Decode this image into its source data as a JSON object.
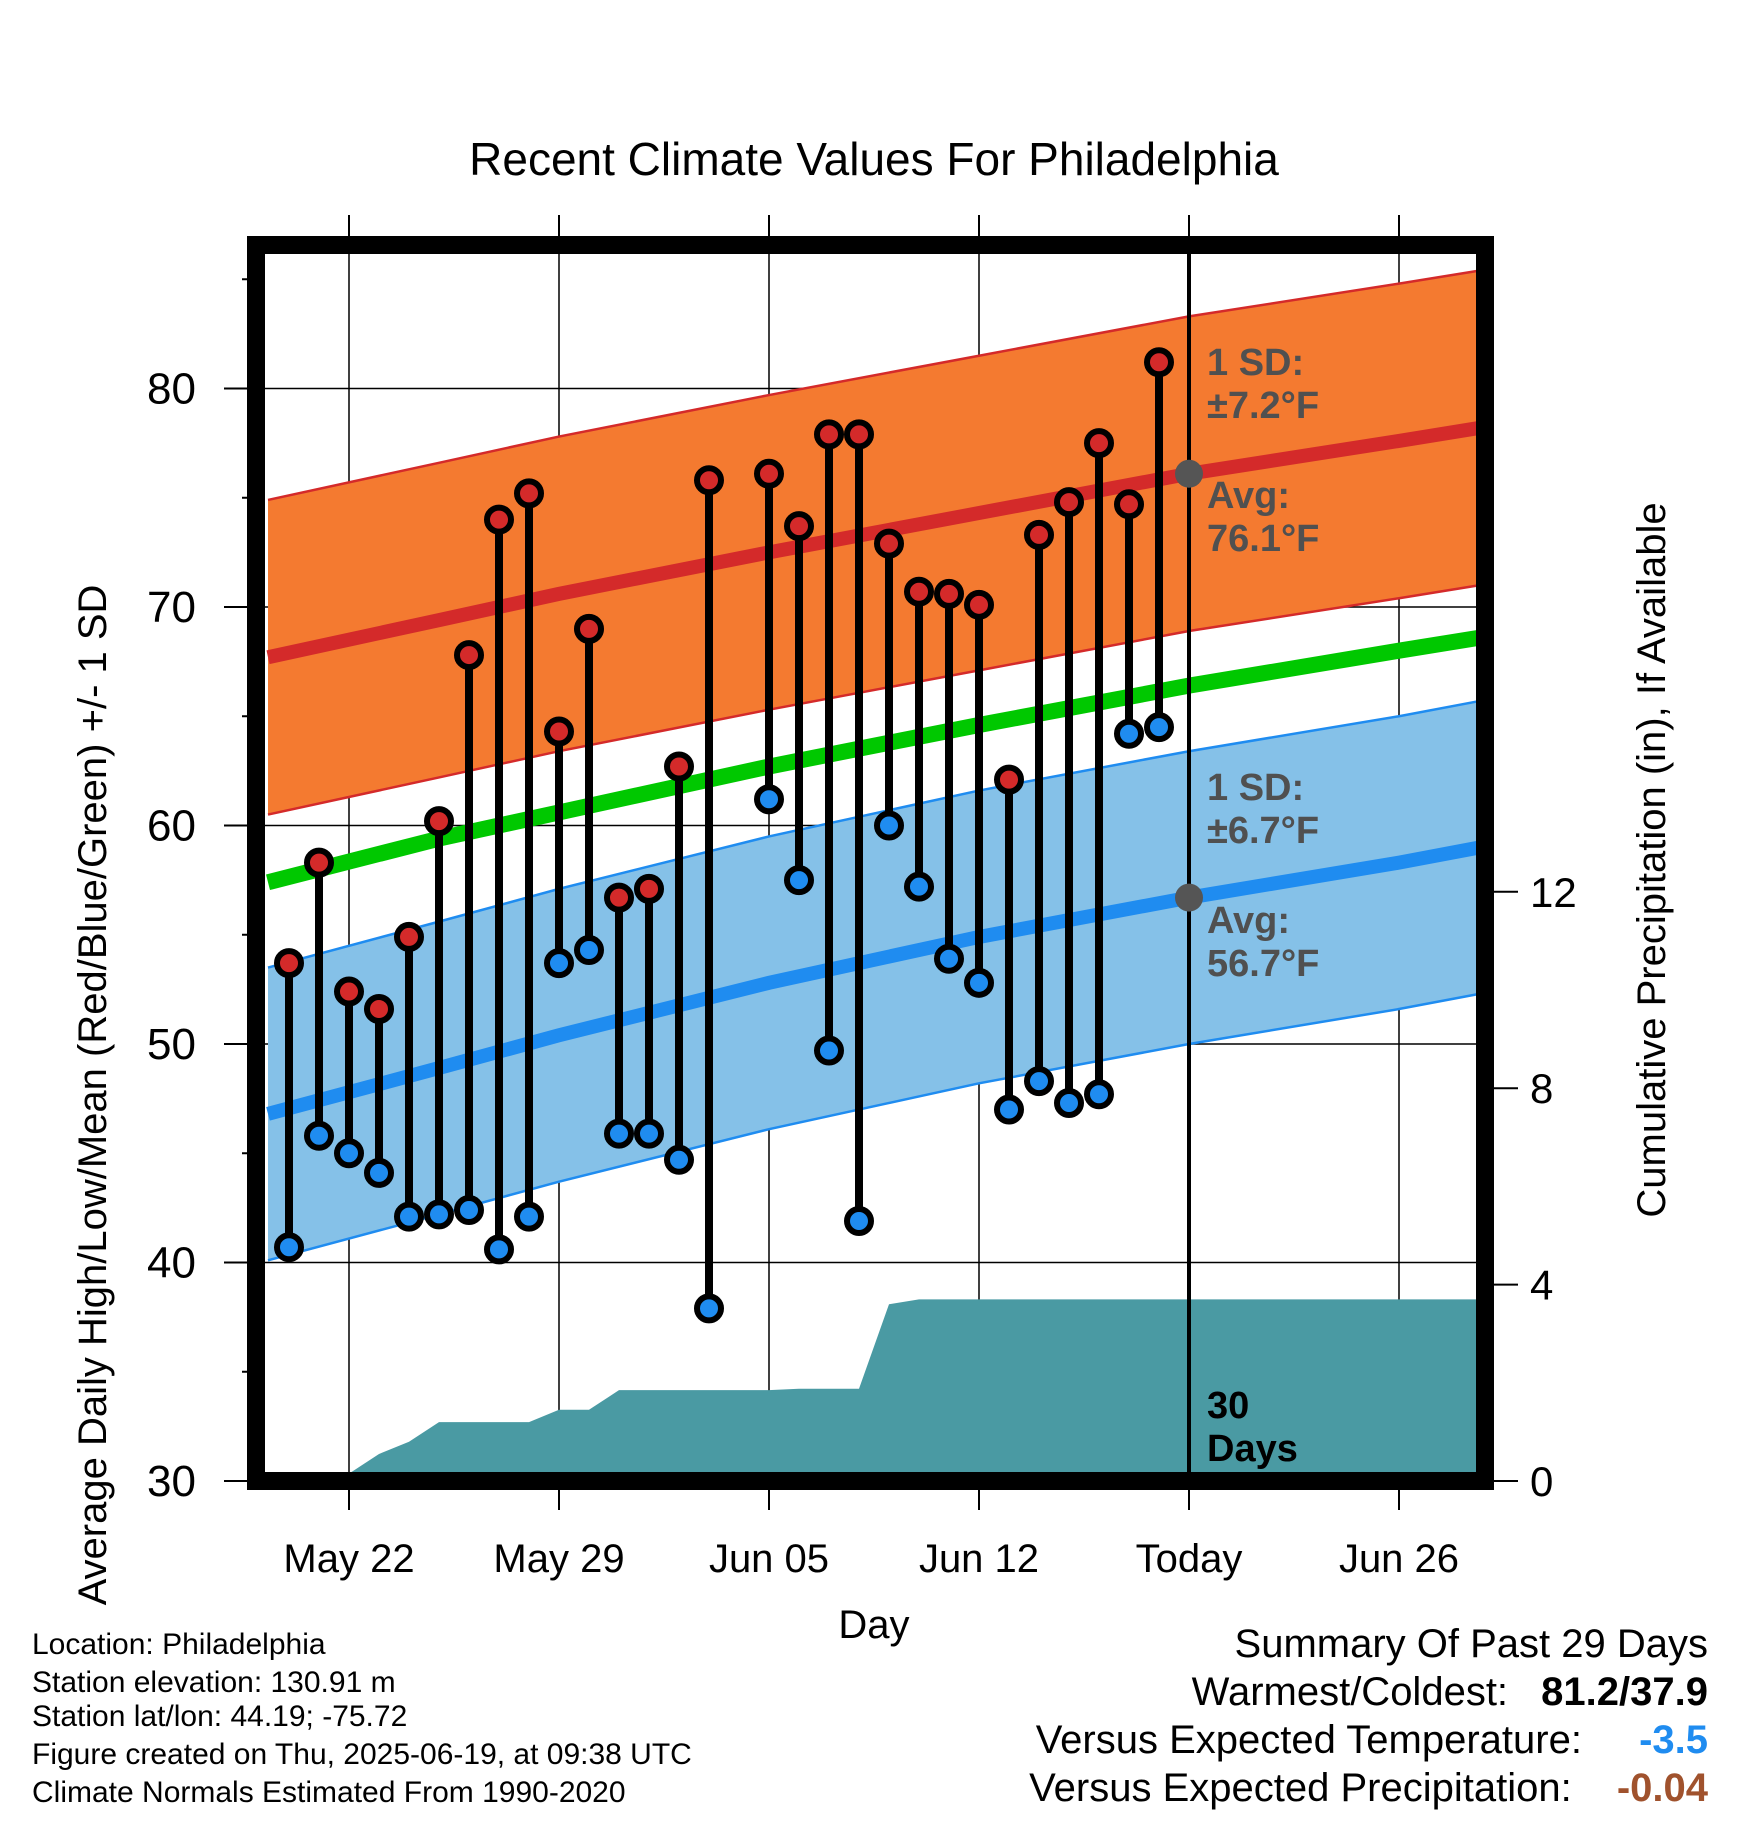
{
  "chart_data": {
    "type": "line",
    "title": "Recent Climate Values For Philadelphia",
    "xlabel": "Day",
    "ylabel": "Average Daily High/Low/Mean (Red/Blue/Green) +/- 1 SD",
    "y2label": "Cumulative Precipitation (in), If Available",
    "ylim": [
      30,
      85
    ],
    "y2lim": [
      0,
      16
    ],
    "xlim": [
      -4.5,
      54.4
    ],
    "x_ticks": [
      {
        "x": 0,
        "label": "May 22"
      },
      {
        "x": 7,
        "label": "May 29"
      },
      {
        "x": 14,
        "label": "Jun 05"
      },
      {
        "x": 21,
        "label": "Jun 12"
      },
      {
        "x": 28,
        "label": "Today"
      },
      {
        "x": 35,
        "label": "Jun 26"
      }
    ],
    "y_ticks": [
      30,
      40,
      50,
      60,
      70,
      80
    ],
    "y2_ticks": [
      0,
      4,
      8,
      12
    ],
    "today_x": 28,
    "normal_high": {
      "x": [
        -2.7,
        3,
        7,
        14,
        21,
        28,
        35,
        37.7
      ],
      "avg": [
        67.7,
        69.4,
        70.6,
        72.5,
        74.3,
        76.1,
        77.6,
        78.2
      ],
      "sd": 7.2
    },
    "normal_low": {
      "x": [
        -2.7,
        3,
        7,
        14,
        21,
        28,
        35,
        37.7
      ],
      "avg": [
        46.8,
        48.9,
        50.4,
        52.8,
        54.9,
        56.7,
        58.3,
        59.0
      ],
      "sd": 6.7
    },
    "normal_mean": {
      "x": [
        -2.7,
        3,
        7,
        14,
        21,
        28,
        35,
        37.7
      ],
      "values": [
        57.4,
        59.4,
        60.6,
        62.7,
        64.6,
        66.4,
        68.0,
        68.6
      ]
    },
    "daily": {
      "x": [
        -2,
        -1,
        0,
        1,
        2,
        3,
        4,
        5,
        6,
        7,
        8,
        9,
        10,
        11,
        12,
        14,
        15,
        16,
        17,
        18,
        19,
        20,
        21,
        22,
        23,
        24,
        25,
        26,
        27
      ],
      "high": [
        53.7,
        58.3,
        52.4,
        51.6,
        54.9,
        60.2,
        67.8,
        74.0,
        75.2,
        64.3,
        69.0,
        56.7,
        57.1,
        62.7,
        75.8,
        76.1,
        73.7,
        77.9,
        77.9,
        72.9,
        70.7,
        70.6,
        70.1,
        62.1,
        73.3,
        74.8,
        77.5,
        74.7,
        81.2
      ],
      "low": [
        40.7,
        45.8,
        45.0,
        44.1,
        42.1,
        42.2,
        42.4,
        40.6,
        42.1,
        53.7,
        54.3,
        45.9,
        45.9,
        44.7,
        37.9,
        61.2,
        57.5,
        49.7,
        41.9,
        60.0,
        57.2,
        53.9,
        52.8,
        47.0,
        48.3,
        47.3,
        47.7,
        64.2,
        64.5
      ]
    },
    "precip": {
      "x": [
        -2.7,
        -1,
        0,
        1,
        2,
        3,
        6,
        7,
        8,
        9,
        10,
        13,
        14,
        15,
        16,
        17,
        18,
        19,
        28,
        37.7
      ],
      "values": [
        0.0,
        0.0,
        0.15,
        0.55,
        0.8,
        1.2,
        1.2,
        1.45,
        1.45,
        1.85,
        1.85,
        1.85,
        1.85,
        1.88,
        1.88,
        1.88,
        3.6,
        3.7,
        3.7,
        3.7
      ]
    },
    "annotations": {
      "high_sd": "1 SD:",
      "high_sd_val": "±7.2°F",
      "high_avg": "Avg:",
      "high_avg_val": "76.1°F",
      "low_sd": "1 SD:",
      "low_sd_val": "±6.7°F",
      "low_avg": "Avg:",
      "low_avg_val": "56.7°F",
      "days_num": "30",
      "days_label": "Days"
    },
    "colors": {
      "high_band": "#f47a30",
      "high_line": "#d42a2a",
      "low_band": "#85c1e8",
      "low_line": "#1f8cf0",
      "mean_line": "#00c800",
      "precip": "#4a9aa3",
      "high_dot": "#d42a2a",
      "low_dot": "#1f8cf0",
      "annotation": "#505050"
    }
  },
  "info": {
    "location": "Location: Philadelphia",
    "elevation": "Station elevation: 130.91 m",
    "latlon": "Station lat/lon: 44.19; -75.72",
    "created": "Figure created on Thu, 2025-06-19, at 09:38 UTC",
    "normals": "Climate Normals Estimated From 1990-2020"
  },
  "summary": {
    "heading": "Summary Of Past 29 Days",
    "warm_label": "Warmest/Coldest:",
    "warm_value": "81.2/37.9",
    "temp_label": "Versus Expected Temperature:",
    "temp_value": "-3.5",
    "temp_color": "#1f8cf0",
    "precip_label": "Versus Expected Precipitation:",
    "precip_value": "-0.04",
    "precip_color": "#a0522d"
  }
}
